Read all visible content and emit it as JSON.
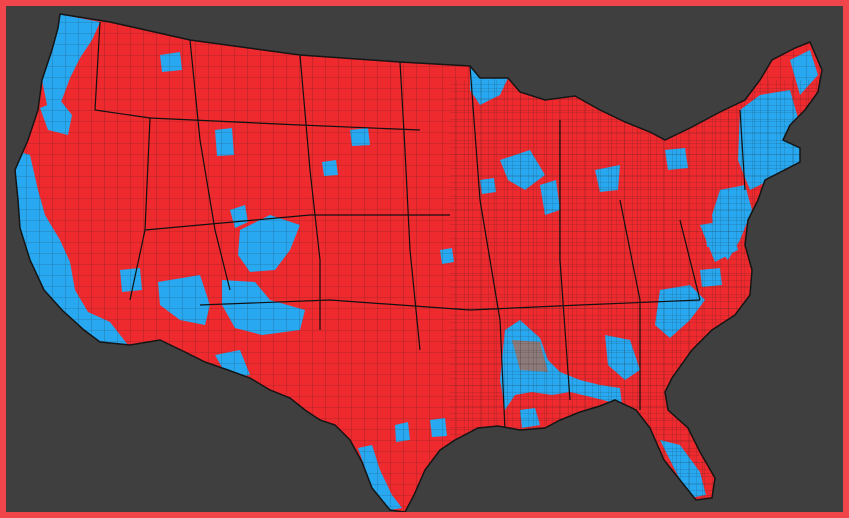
{
  "map": {
    "colors": {
      "background": "#3f3f3f",
      "frame_border": "#f0464b",
      "republican": "#ee2a2e",
      "democrat": "#27a8f0",
      "no_data": "#8c7a7a",
      "county_line": "#1e1e1e"
    },
    "legend_labels": []
  }
}
